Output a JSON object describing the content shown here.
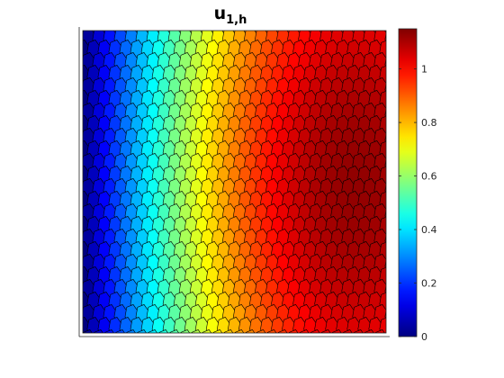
{
  "chart_data": {
    "type": "heatmap",
    "title": "u",
    "title_subscript": "1,h",
    "colormap": "jet",
    "mesh": "polygonal",
    "colorbar": {
      "location": "right",
      "range": [
        0,
        1.15
      ],
      "ticks": [
        0,
        0.2,
        0.4,
        0.6,
        0.8,
        1
      ],
      "tick_labels": [
        "0",
        "0.2",
        "0.4",
        "0.6",
        "0.8",
        "1"
      ]
    },
    "x_range": [
      0,
      1
    ],
    "y_range": [
      0,
      1
    ],
    "x_ticks_shown": false,
    "y_ticks_shown": false,
    "field": {
      "description_samples_x": [
        0,
        0.25,
        0.5,
        0.75,
        0.9,
        1
      ],
      "description_samples_u_mid_y": [
        0,
        0.33,
        0.58,
        0.93,
        1.13,
        1.03
      ]
    }
  }
}
